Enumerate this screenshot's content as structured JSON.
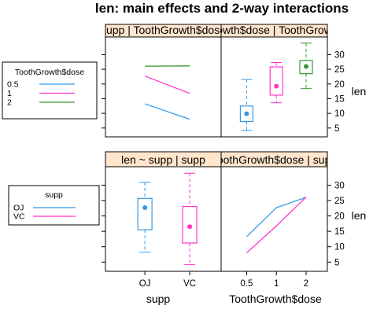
{
  "chart_data": {
    "type": "mixed",
    "title": "len: main effects and 2-way interactions",
    "colors": {
      "0.5": "#3399e6",
      "1": "#ff33cc",
      "2": "#339933",
      "OJ": "#3399e6",
      "VC": "#ff33cc",
      "strip": "#ffe5cc"
    },
    "y_axis": {
      "label": "len",
      "ticks": [
        5,
        10,
        15,
        20,
        25,
        30
      ],
      "lim": [
        2,
        36
      ]
    },
    "panels": [
      {
        "id": "interaction-supp-by-dose",
        "strip": "supp | ToothGrowth$dose",
        "type": "line",
        "x_categories": [
          "OJ",
          "VC"
        ],
        "series": [
          {
            "name": "0.5",
            "values": [
              13.23,
              7.98
            ]
          },
          {
            "name": "1",
            "values": [
              22.7,
              16.77
            ]
          },
          {
            "name": "2",
            "values": [
              26.06,
              26.14
            ]
          }
        ]
      },
      {
        "id": "boxplot-dose",
        "strip": "ToothGrowth$dose | ToothGrowth$dose",
        "type": "boxplot",
        "x_categories": [
          "0.5",
          "1",
          "2"
        ],
        "boxes": [
          {
            "name": "0.5",
            "min": 4.2,
            "q1": 7.2,
            "median": 9.85,
            "q3": 12.5,
            "max": 21.5
          },
          {
            "name": "1",
            "min": 13.6,
            "q1": 16.2,
            "median": 19.25,
            "q3": 25.8,
            "max": 27.3
          },
          {
            "name": "2",
            "min": 18.5,
            "q1": 23.5,
            "median": 25.95,
            "q3": 28.0,
            "max": 33.9
          }
        ]
      },
      {
        "id": "boxplot-supp",
        "strip": "len ~ supp | supp",
        "type": "boxplot",
        "x_categories": [
          "OJ",
          "VC"
        ],
        "boxes": [
          {
            "name": "OJ",
            "min": 8.2,
            "q1": 15.5,
            "median": 22.7,
            "q3": 25.7,
            "max": 30.9
          },
          {
            "name": "VC",
            "min": 4.2,
            "q1": 11.2,
            "median": 16.5,
            "q3": 23.1,
            "max": 33.9
          }
        ]
      },
      {
        "id": "interaction-dose-by-supp",
        "strip": "ToothGrowth$dose | supp",
        "type": "line",
        "x_categories": [
          "0.5",
          "1",
          "2"
        ],
        "series": [
          {
            "name": "OJ",
            "values": [
              13.23,
              22.7,
              26.06
            ]
          },
          {
            "name": "VC",
            "values": [
              7.98,
              16.77,
              26.14
            ]
          }
        ]
      }
    ],
    "x_axis_labels": {
      "left": "supp",
      "right": "ToothGrowth$dose"
    },
    "legends": [
      {
        "title": "ToothGrowth$dose",
        "entries": [
          "0.5",
          "1",
          "2"
        ]
      },
      {
        "title": "supp",
        "entries": [
          "OJ",
          "VC"
        ]
      }
    ]
  }
}
